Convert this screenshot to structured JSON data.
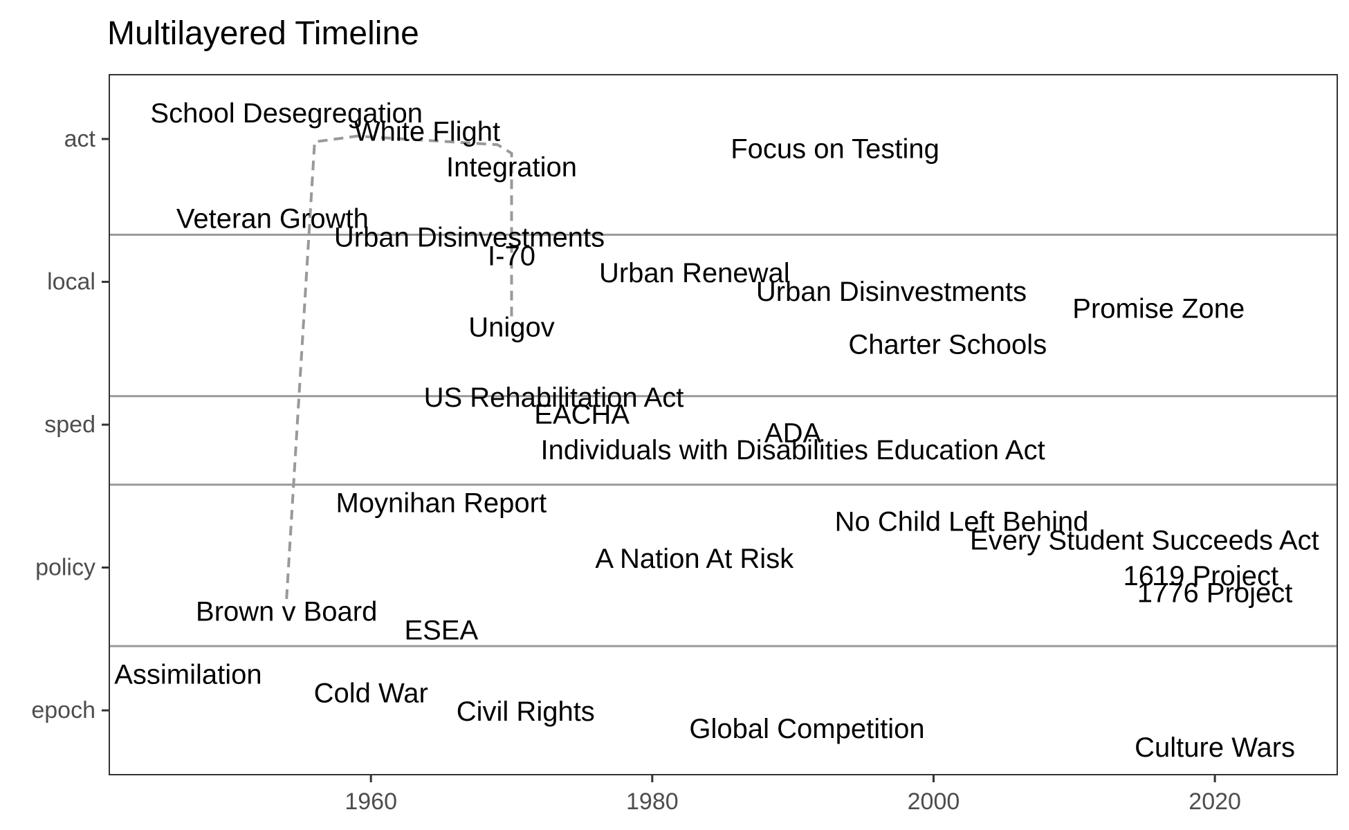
{
  "chart_data": {
    "type": "scatter",
    "title": "Multilayered Timeline",
    "xlabel": "",
    "ylabel": "",
    "xlim": [
      1941.4,
      2028.7
    ],
    "ylim": [
      0.55,
      5.45
    ],
    "x_ticks": [
      1960,
      1980,
      2000,
      2020
    ],
    "y_categories": [
      "epoch",
      "policy",
      "sped",
      "local",
      "act"
    ],
    "bands": [
      {
        "name": "epoch",
        "from": 0.55,
        "to": 1.45
      },
      {
        "name": "policy",
        "from": 1.45,
        "to": 2.58
      },
      {
        "name": "sped",
        "from": 2.58,
        "to": 3.2
      },
      {
        "name": "local",
        "from": 3.2,
        "to": 4.33
      },
      {
        "name": "act",
        "from": 4.33,
        "to": 5.45
      }
    ],
    "grid": false,
    "legend": "none",
    "points": [
      {
        "label": "School Desegregation",
        "x": 1954,
        "y": 5.18
      },
      {
        "label": "White Flight",
        "x": 1964,
        "y": 5.05
      },
      {
        "label": "Focus on Testing",
        "x": 1993,
        "y": 4.93
      },
      {
        "label": "Integration",
        "x": 1970,
        "y": 4.8
      },
      {
        "label": "Veteran Growth",
        "x": 1953,
        "y": 4.44
      },
      {
        "label": "Urban Disinvestments",
        "x": 1967,
        "y": 4.31
      },
      {
        "label": "I-70",
        "x": 1970,
        "y": 4.18
      },
      {
        "label": "Urban Renewal",
        "x": 1983,
        "y": 4.06
      },
      {
        "label": "Urban Disinvestments",
        "x": 1997,
        "y": 3.93
      },
      {
        "label": "Promise Zone",
        "x": 2016,
        "y": 3.81
      },
      {
        "label": "Unigov",
        "x": 1970,
        "y": 3.68
      },
      {
        "label": "Charter Schools",
        "x": 2001,
        "y": 3.56
      },
      {
        "label": "US Rehabilitation Act",
        "x": 1973,
        "y": 3.19
      },
      {
        "label": "EACHA",
        "x": 1975,
        "y": 3.07
      },
      {
        "label": "ADA",
        "x": 1990,
        "y": 2.94
      },
      {
        "label": "Individuals with Disabilities Education Act",
        "x": 1990,
        "y": 2.82
      },
      {
        "label": "Moynihan Report",
        "x": 1965,
        "y": 2.45
      },
      {
        "label": "No Child Left Behind",
        "x": 2002,
        "y": 2.32
      },
      {
        "label": "Every Student Succeeds Act",
        "x": 2015,
        "y": 2.19
      },
      {
        "label": "A Nation At Risk",
        "x": 1983,
        "y": 2.06
      },
      {
        "label": "1619 Project",
        "x": 2019,
        "y": 1.94
      },
      {
        "label": "1776 Project",
        "x": 2020,
        "y": 1.82
      },
      {
        "label": "Brown v Board",
        "x": 1954,
        "y": 1.69
      },
      {
        "label": "ESEA",
        "x": 1965,
        "y": 1.56
      },
      {
        "label": "Assimilation",
        "x": 1947,
        "y": 1.25
      },
      {
        "label": "Cold War",
        "x": 1960,
        "y": 1.12
      },
      {
        "label": "Civil Rights",
        "x": 1971,
        "y": 0.99
      },
      {
        "label": "Global Competition",
        "x": 1991,
        "y": 0.87
      },
      {
        "label": "Culture Wars",
        "x": 2020,
        "y": 0.74
      }
    ],
    "connector": {
      "style": "dashed",
      "color": "#999999",
      "x": [
        1954,
        1956,
        1959,
        1969,
        1970,
        1970
      ],
      "y": [
        1.78,
        4.98,
        5.02,
        4.96,
        4.9,
        3.75
      ]
    }
  }
}
